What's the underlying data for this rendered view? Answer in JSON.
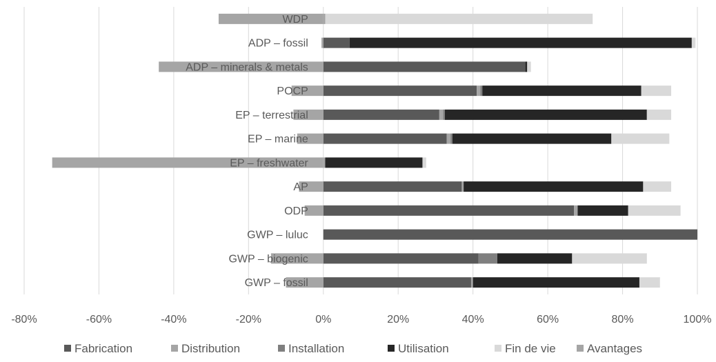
{
  "chart_data": {
    "type": "bar",
    "orientation": "horizontal",
    "stacked": true,
    "title": "",
    "xlabel": "",
    "ylabel": "",
    "xlim": [
      -0.8,
      1.0
    ],
    "grid": "vertical",
    "legend_position": "bottom",
    "x_ticks": [
      "-80%",
      "-60%",
      "-40%",
      "-20%",
      "0%",
      "20%",
      "40%",
      "60%",
      "80%",
      "100%"
    ],
    "x_tick_values": [
      -0.8,
      -0.6,
      -0.4,
      -0.2,
      0,
      0.2,
      0.4,
      0.6,
      0.8,
      1.0
    ],
    "categories": [
      "WDP",
      "ADP – fossil",
      "ADP – minerals  & metals",
      "POCP",
      "EP – terrestrial",
      "EP – marine",
      "EP – freshwater",
      "AP",
      "ODP",
      "GWP – luluc",
      "GWP – biogenic",
      "GWP – fossil"
    ],
    "series": [
      {
        "name": "Fabrication",
        "color": "#595959",
        "values": [
          0.0,
          0.07,
          0.54,
          0.41,
          0.31,
          0.33,
          0.0,
          0.37,
          0.67,
          1.0,
          0.415,
          0.395
        ]
      },
      {
        "name": "Distribution",
        "color": "#a5a5a5",
        "values": [
          0.005,
          0.0,
          0.0,
          0.01,
          0.01,
          0.01,
          0.005,
          0.005,
          0.01,
          0.0,
          0.0,
          0.005
        ]
      },
      {
        "name": "Installation",
        "color": "#7f7f7f",
        "values": [
          0.0,
          0.0,
          0.0,
          0.005,
          0.005,
          0.005,
          0.0,
          0.0,
          0.0,
          0.0,
          0.05,
          0.0
        ]
      },
      {
        "name": "Utilisation",
        "color": "#262626",
        "values": [
          0.0,
          0.915,
          0.005,
          0.425,
          0.54,
          0.425,
          0.26,
          0.48,
          0.135,
          0.0,
          0.2,
          0.445
        ]
      },
      {
        "name": "Fin de vie",
        "color": "#d9d9d9",
        "values": [
          0.715,
          0.01,
          0.01,
          0.08,
          0.065,
          0.155,
          0.01,
          0.075,
          0.14,
          0.0,
          0.2,
          0.055
        ]
      },
      {
        "name": "Avantages",
        "color": "#a5a5a5",
        "values": [
          -0.28,
          -0.005,
          -0.44,
          -0.085,
          -0.08,
          -0.07,
          -0.725,
          -0.065,
          -0.05,
          0.0,
          -0.14,
          -0.1
        ]
      }
    ]
  }
}
